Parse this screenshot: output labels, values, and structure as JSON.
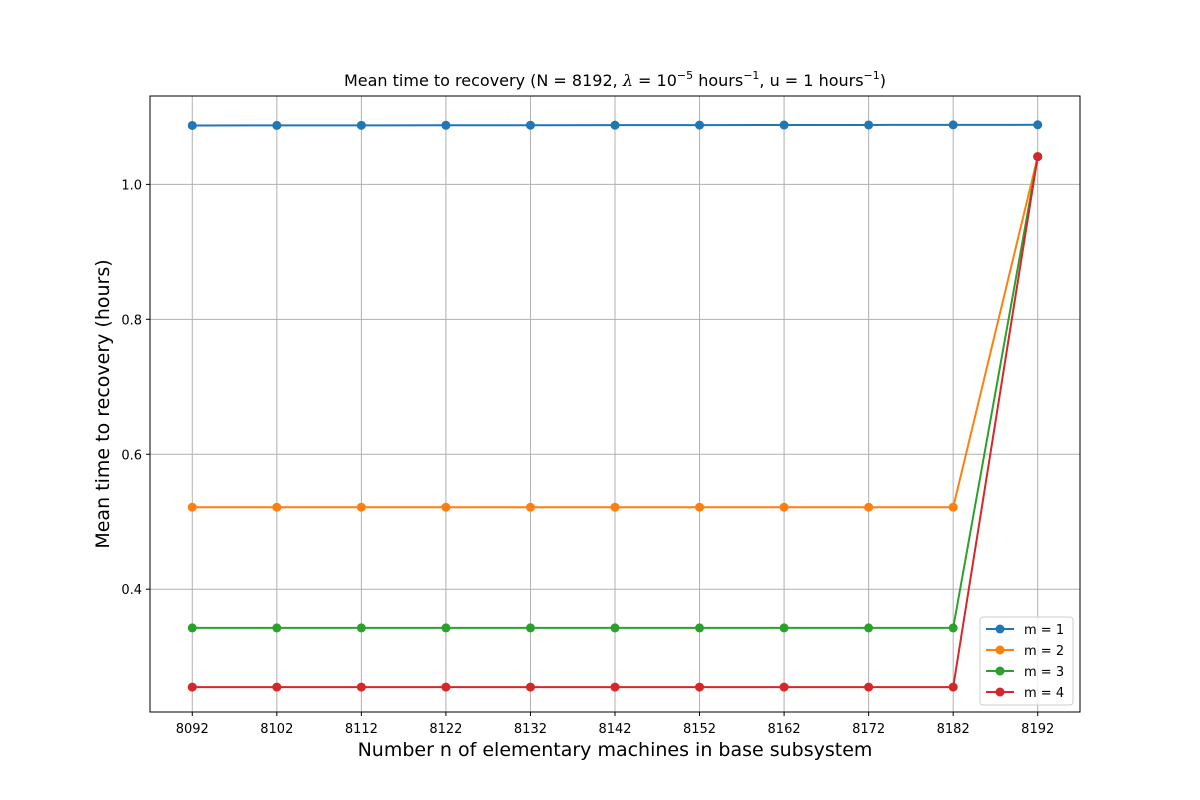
{
  "chart_data": {
    "type": "line",
    "title_main": "Mean time to recovery (N = 8192, ",
    "title_lambda": "λ",
    "title_eq": " = 10",
    "title_exp1": "−5",
    "title_unit1": " hours",
    "title_exp2": "−1",
    "title_mid": ", u = 1 hours",
    "title_exp3": "−1",
    "title_end": ")",
    "xlabel": "Number n of elementary machines in base subsystem",
    "ylabel": "Mean time to recovery (hours)",
    "x": [
      8092,
      8102,
      8112,
      8122,
      8132,
      8142,
      8152,
      8162,
      8172,
      8182,
      8192
    ],
    "x_ticks": [
      "8092",
      "8102",
      "8112",
      "8122",
      "8132",
      "8142",
      "8152",
      "8162",
      "8172",
      "8182",
      "8192"
    ],
    "y_ticks": [
      0.4,
      0.6,
      0.8,
      1.0
    ],
    "y_tick_labels": [
      "0.4",
      "0.6",
      "0.8",
      "1.0"
    ],
    "xlim": [
      8087,
      8197
    ],
    "ylim": [
      0.218,
      1.131
    ],
    "grid": true,
    "legend_position": "lower-right",
    "series": [
      {
        "name": "m = 1",
        "color": "#1f77b4",
        "values": [
          1.0873,
          1.0874,
          1.0875,
          1.0876,
          1.0877,
          1.0878,
          1.0879,
          1.088,
          1.0881,
          1.0882,
          1.0883
        ]
      },
      {
        "name": "m = 2",
        "color": "#ff7f0e",
        "values": [
          0.5215,
          0.5215,
          0.5215,
          0.5215,
          0.5215,
          0.5215,
          0.5215,
          0.5215,
          0.5215,
          0.5215,
          1.0412
        ]
      },
      {
        "name": "m = 3",
        "color": "#2ca02c",
        "values": [
          0.3426,
          0.3426,
          0.3426,
          0.3426,
          0.3426,
          0.3426,
          0.3426,
          0.3426,
          0.3426,
          0.3426,
          1.0412
        ]
      },
      {
        "name": "m = 4",
        "color": "#d62728",
        "values": [
          0.2549,
          0.2549,
          0.2549,
          0.2549,
          0.2549,
          0.2549,
          0.2549,
          0.2549,
          0.2549,
          0.2549,
          1.0412
        ]
      }
    ]
  }
}
